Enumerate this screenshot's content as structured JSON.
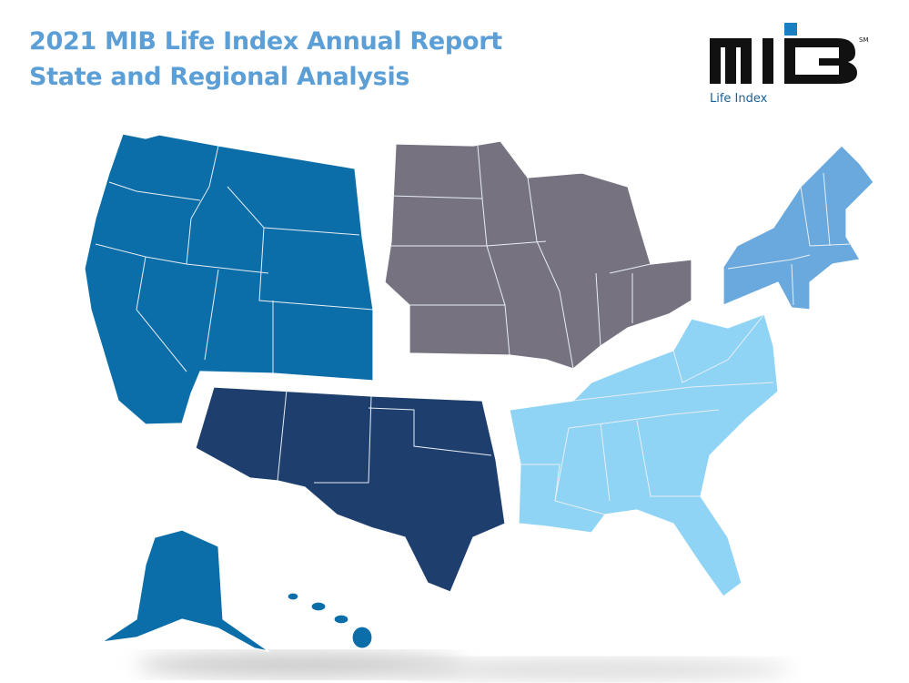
{
  "header": {
    "title": "2021 MIB Life Index Annual Report",
    "subtitle": "State and Regional Analysis"
  },
  "logo": {
    "tagline": "Life Index",
    "mark": "SM"
  }
}
